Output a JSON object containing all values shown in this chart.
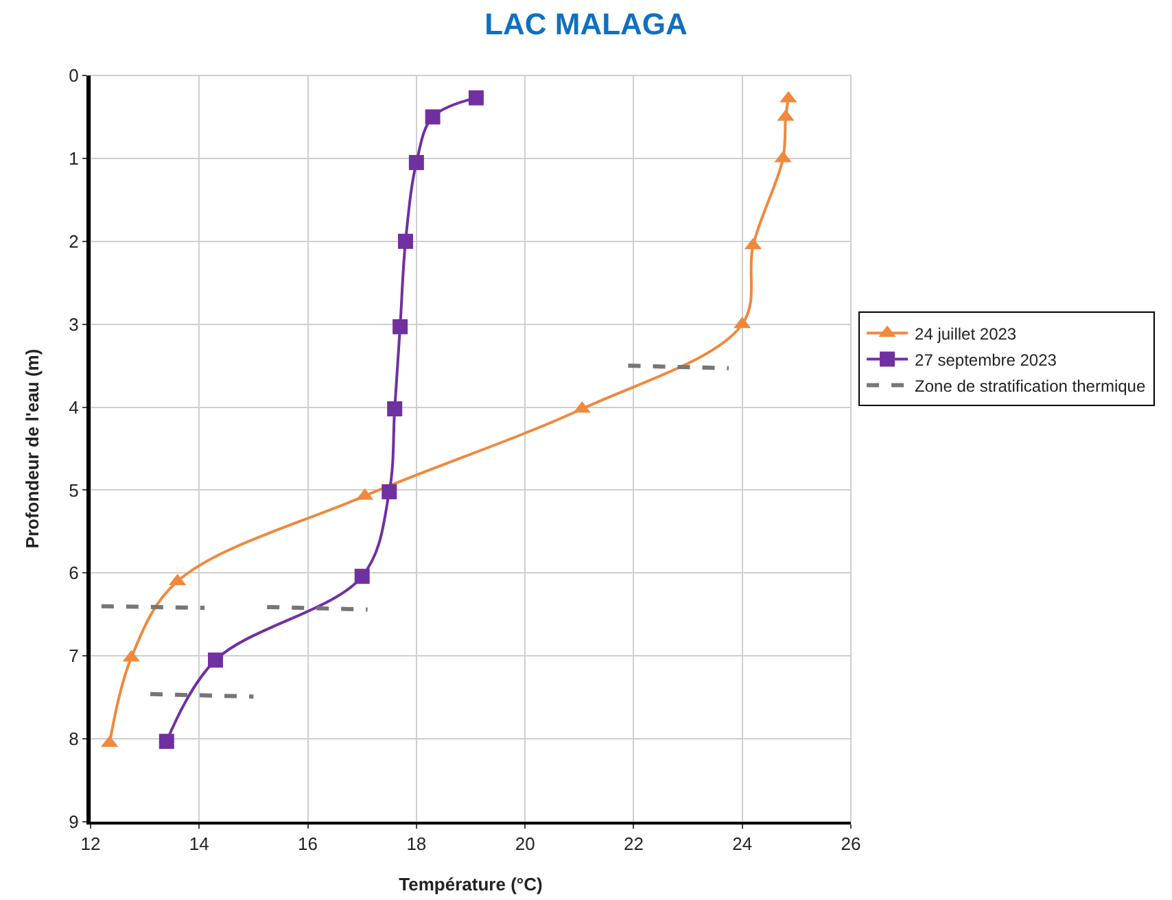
{
  "chart_data": {
    "type": "line",
    "title": "LAC MALAGA",
    "xlabel": "Température (°C)",
    "ylabel": "Profondeur de l'eau (m)",
    "xlim": [
      12,
      26
    ],
    "xticks": [
      12,
      14,
      16,
      18,
      20,
      22,
      24,
      26
    ],
    "ylim": [
      9,
      0
    ],
    "yticks": [
      0,
      1,
      2,
      3,
      4,
      5,
      6,
      7,
      8,
      9
    ],
    "grid": true,
    "legend": "right",
    "series": [
      {
        "name": "24 juillet 2023",
        "color": "#f0883e",
        "marker": "triangle",
        "x": [
          24.85,
          24.8,
          24.75,
          24.2,
          24.0,
          21.05,
          17.05,
          13.6,
          12.75,
          12.35
        ],
        "values": [
          0.28,
          0.5,
          1.0,
          2.05,
          3.0,
          4.02,
          5.07,
          6.1,
          7.02,
          8.05
        ]
      },
      {
        "name": "27 septembre 2023",
        "color": "#7030a0",
        "marker": "square",
        "x": [
          19.1,
          18.3,
          18.0,
          17.8,
          17.7,
          17.6,
          17.5,
          17.0,
          14.3,
          13.4
        ],
        "values": [
          0.27,
          0.5,
          1.05,
          2.0,
          3.03,
          4.02,
          5.02,
          6.04,
          7.05,
          8.03
        ]
      },
      {
        "name": "Zone de stratification thermique",
        "color": "#767676",
        "marker": "none",
        "line_style": "dashed",
        "x": [
          12.2,
          14.1,
          null,
          15.25,
          17.1,
          null,
          13.1,
          15.0,
          null,
          21.9,
          23.75
        ],
        "values": [
          6.4,
          6.42,
          null,
          6.41,
          6.44,
          null,
          7.46,
          7.49,
          null,
          3.5,
          3.53
        ]
      }
    ]
  }
}
